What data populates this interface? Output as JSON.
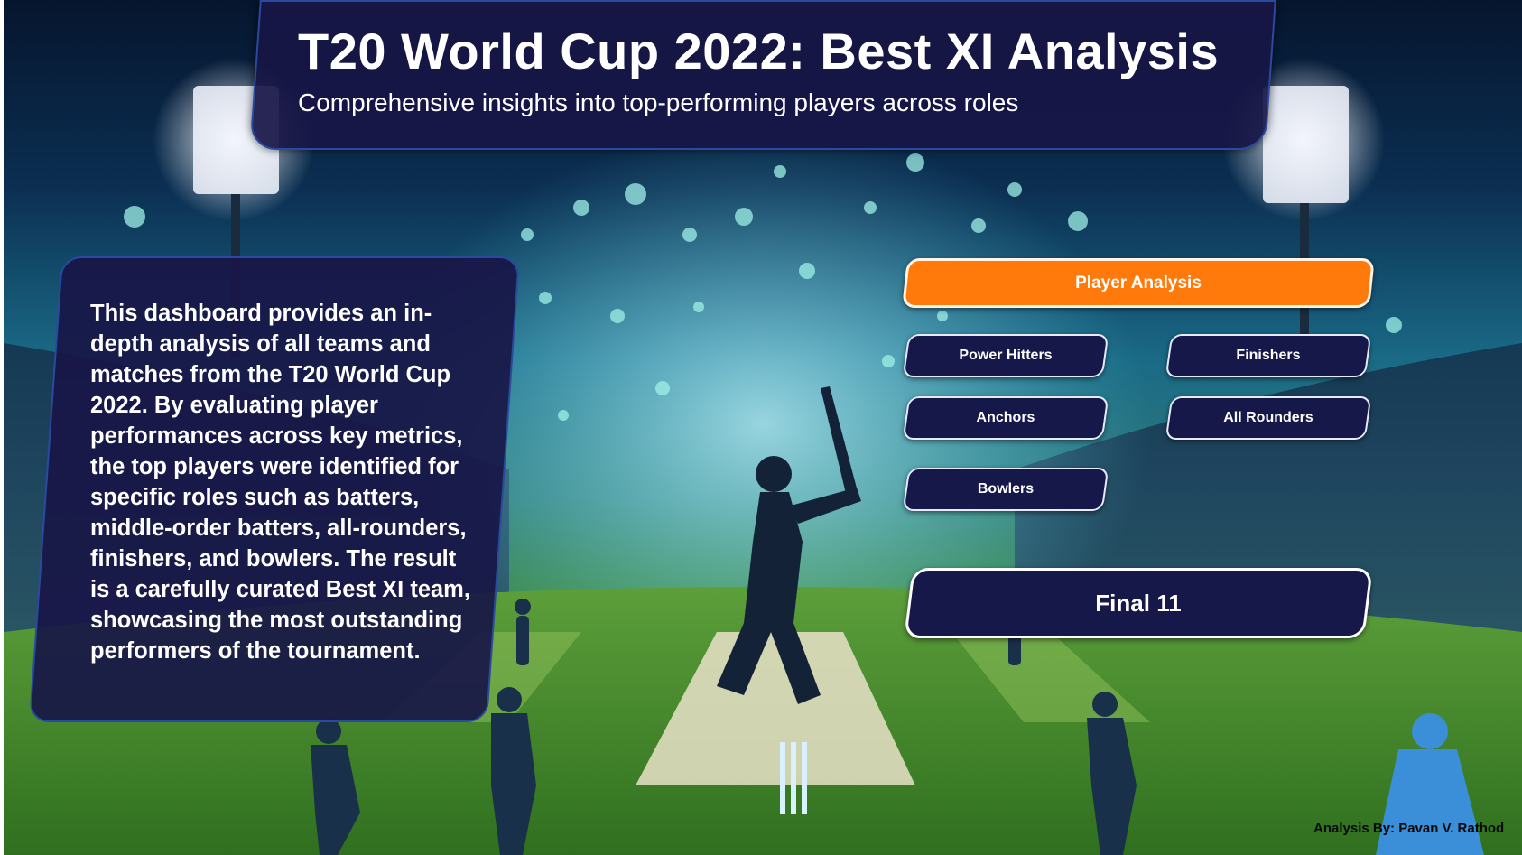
{
  "header": {
    "title": "T20 World Cup 2022: Best XI Analysis",
    "subtitle": "Comprehensive insights into top-performing players across roles"
  },
  "description": {
    "text": "This dashboard provides an in-depth analysis of all teams and matches from the T20 World Cup 2022. By evaluating player performances across key metrics, the top players were identified for specific roles such as batters, middle-order batters, all-rounders, finishers, and bowlers. The result is a carefully curated Best XI team, showcasing the most outstanding performers of the tournament."
  },
  "navigation": {
    "player_analysis_label": "Player Analysis",
    "power_hitters_label": "Power Hitters",
    "finishers_label": "Finishers",
    "anchors_label": "Anchors",
    "all_rounders_label": "All Rounders",
    "bowlers_label": "Bowlers",
    "final_label": "Final 11"
  },
  "footer": {
    "credit": "Analysis By: Pavan V. Rathod"
  },
  "colors": {
    "accent": "#ff7a0a",
    "panel": "#17184a",
    "panel_border": "#2a4aa0",
    "text": "#ffffff"
  }
}
